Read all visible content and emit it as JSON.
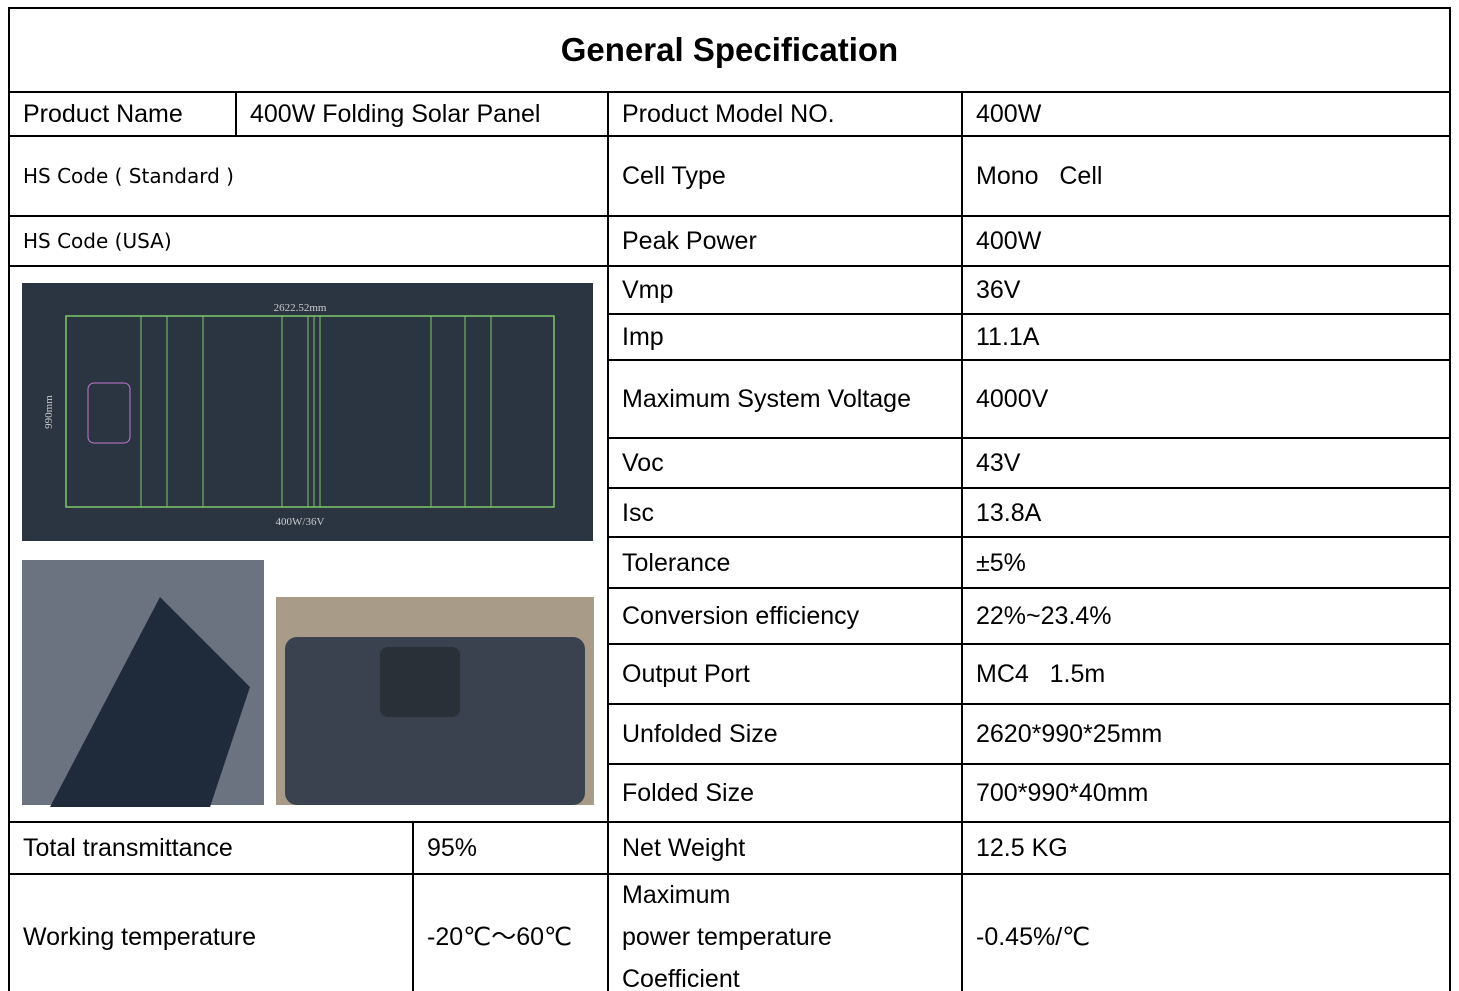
{
  "header": {
    "title": "General Specification"
  },
  "product": {
    "name_label": "Product Name",
    "name_value": "400W Folding Solar Panel",
    "model_label": "Product Model NO.",
    "model_value": "400W"
  },
  "left": {
    "hs_standard": "HS Code ( Standard )",
    "hs_usa": "HS Code (USA)",
    "drawing": {
      "width": "2622.52mm",
      "height": "990mm",
      "rating": "400W/36V"
    },
    "transmittance_label": "Total transmittance",
    "transmittance_value": "95%",
    "temperature_label": "Working temperature",
    "temperature_value": "-20℃～60℃"
  },
  "specs": [
    {
      "label": "Cell Type",
      "value": "Mono   Cell"
    },
    {
      "label": "Peak Power",
      "value": "400W"
    },
    {
      "label": "Vmp",
      "value": "36V"
    },
    {
      "label": "Imp",
      "value": "11.1A"
    },
    {
      "label": "Maximum System Voltage",
      "value": "4000V"
    },
    {
      "label": "Voc",
      "value": "43V"
    },
    {
      "label": "Isc",
      "value": "13.8A"
    },
    {
      "label": "Tolerance",
      "value": "±5%"
    },
    {
      "label": "Conversion efficiency",
      "value": "22%~23.4%"
    },
    {
      "label": "Output Port",
      "value": "MC4   1.5m"
    },
    {
      "label": "Unfolded Size",
      "value": "2620*990*25mm"
    },
    {
      "label": "Folded Size",
      "value": "700*990*40mm"
    },
    {
      "label": "Net Weight",
      "value": "12.5 KG"
    },
    {
      "label": "Maximum\npower temperature\nCoefficient",
      "value": "-0.45%/℃"
    }
  ]
}
